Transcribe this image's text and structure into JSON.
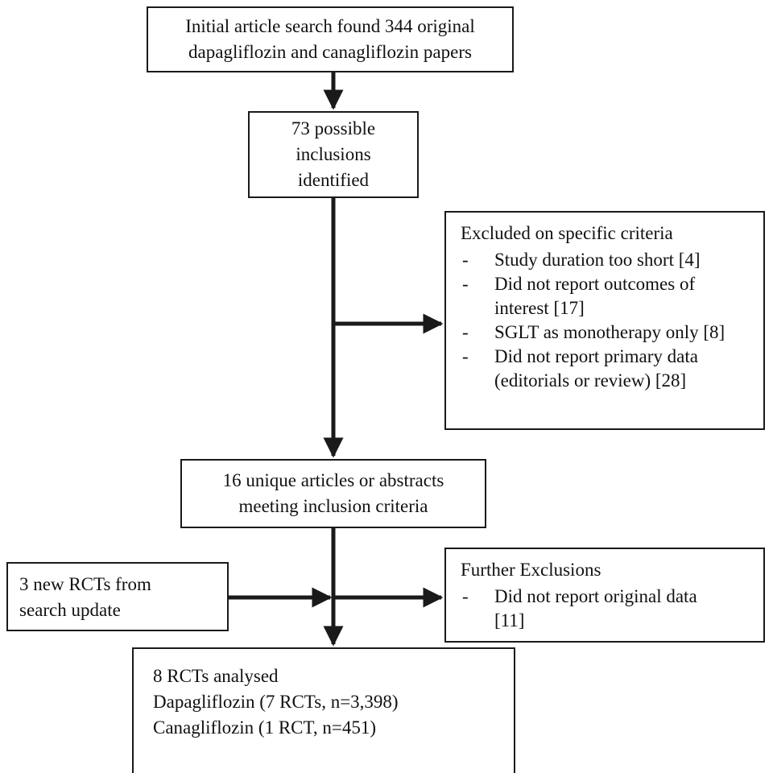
{
  "box1": {
    "lines": [
      "Initial article search found 344 original",
      "dapagliflozin and canagliflozin papers"
    ]
  },
  "box2": {
    "lines": [
      "73 possible",
      "inclusions",
      "identified"
    ]
  },
  "excluded": {
    "title": "Excluded on specific criteria",
    "items": [
      {
        "bullet": "-",
        "lines": [
          "Study duration too short [4]"
        ]
      },
      {
        "bullet": "-",
        "lines": [
          "Did not report outcomes of",
          "interest [17]"
        ]
      },
      {
        "bullet": "-",
        "lines": [
          "SGLT as monotherapy only [8]"
        ]
      },
      {
        "bullet": "-",
        "lines": [
          "Did not report primary data",
          "(editorials or review) [28]"
        ]
      }
    ]
  },
  "box3": {
    "lines": [
      "16 unique articles or abstracts",
      "meeting inclusion criteria"
    ]
  },
  "new_rcts": {
    "lines": [
      "3 new RCTs from",
      "search update"
    ]
  },
  "further": {
    "title": "Further Exclusions",
    "items": [
      {
        "bullet": "-",
        "lines": [
          "Did not report original data",
          "[11]"
        ]
      }
    ]
  },
  "final": {
    "lines": [
      "8 RCTs analysed",
      "Dapagliflozin (7 RCTs, n=3,398)",
      "Canagliflozin (1 RCT, n=451)"
    ]
  },
  "colors": {
    "ink": "#1a1a1a",
    "background": "#ffffff"
  }
}
